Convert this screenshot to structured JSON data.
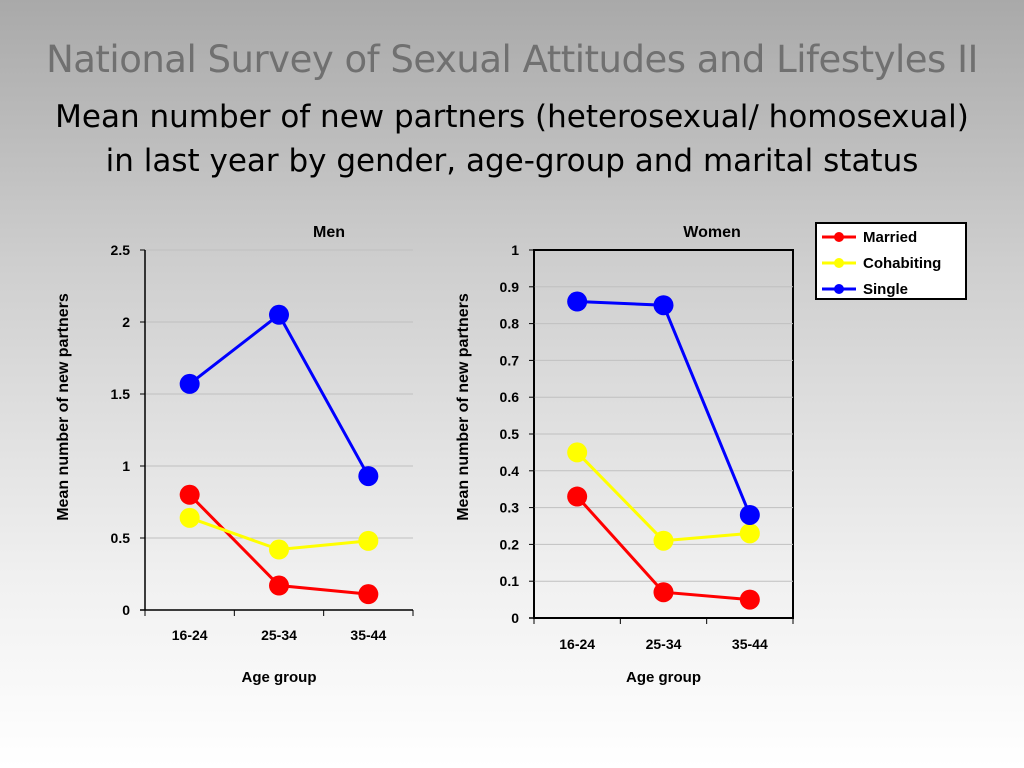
{
  "slide": {
    "title": "National Survey of Sexual Attitudes and Lifestyles II",
    "subtitle": "Mean number of new partners (heterosexual/ homosexual) in last year by gender, age-group and marital status"
  },
  "legend": {
    "placement": "top-right",
    "items": [
      {
        "label": "Married",
        "color": "#ff0000"
      },
      {
        "label": "Cohabiting",
        "color": "#ffff00"
      },
      {
        "label": "Single",
        "color": "#0000ff"
      }
    ]
  },
  "chart_data": [
    {
      "type": "line",
      "title": "Men",
      "xlabel": "Age group",
      "ylabel": "Mean number of new partners",
      "categories": [
        "16-24",
        "25-34",
        "35-44"
      ],
      "ylim": [
        0,
        2.5
      ],
      "yticks": [
        "0",
        "0.5",
        "1",
        "1.5",
        "2",
        "2.5"
      ],
      "grid": true,
      "series": [
        {
          "name": "Married",
          "color": "#ff0000",
          "values": [
            0.8,
            0.17,
            0.11
          ]
        },
        {
          "name": "Cohabiting",
          "color": "#ffff00",
          "values": [
            0.64,
            0.42,
            0.48
          ]
        },
        {
          "name": "Single",
          "color": "#0000ff",
          "values": [
            1.57,
            2.05,
            0.93
          ]
        }
      ]
    },
    {
      "type": "line",
      "title": "Women",
      "xlabel": "Age group",
      "ylabel": "Mean number of new partners",
      "categories": [
        "16-24",
        "25-34",
        "35-44"
      ],
      "ylim": [
        0,
        1
      ],
      "yticks": [
        "0",
        "0.1",
        "0.2",
        "0.3",
        "0.4",
        "0.5",
        "0.6",
        "0.7",
        "0.8",
        "0.9",
        "1"
      ],
      "grid": true,
      "series": [
        {
          "name": "Married",
          "color": "#ff0000",
          "values": [
            0.33,
            0.07,
            0.05
          ]
        },
        {
          "name": "Cohabiting",
          "color": "#ffff00",
          "values": [
            0.45,
            0.21,
            0.23
          ]
        },
        {
          "name": "Single",
          "color": "#0000ff",
          "values": [
            0.86,
            0.85,
            0.28
          ]
        }
      ]
    }
  ]
}
